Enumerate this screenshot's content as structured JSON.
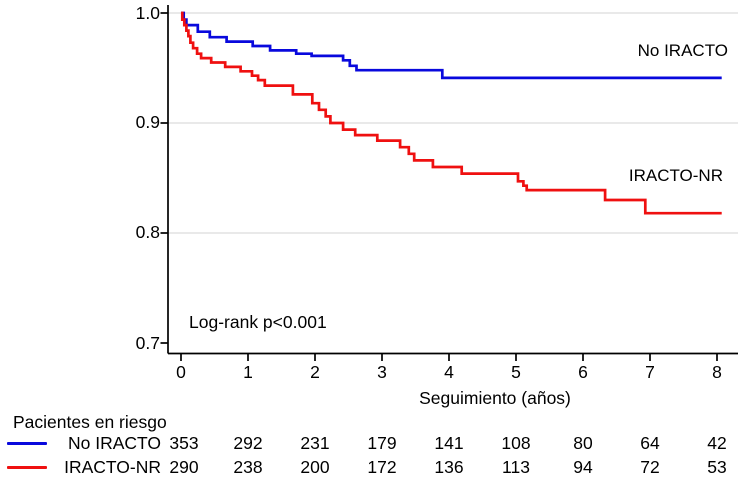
{
  "chart_data": {
    "type": "line",
    "subtype": "kaplan-meier-step-survival",
    "title": "",
    "xlabel": "Seguimiento (años)",
    "ylabel": "",
    "xlim": [
      0,
      8
    ],
    "ylim": [
      0.7,
      1.0
    ],
    "x_ticks": [
      0,
      1,
      2,
      3,
      4,
      5,
      6,
      7,
      8
    ],
    "y_ticks": [
      1.0,
      0.9,
      0.8,
      0.7
    ],
    "y_tick_labels": [
      "1.0",
      "0.9",
      "0.8",
      "0.7"
    ],
    "grid_values": [
      1.0,
      0.9,
      0.8
    ],
    "grid": "horizontal",
    "legend_position": "labels-right-of-curves",
    "annotation": "Log-rank p<0.001",
    "series": [
      {
        "name": "No IRACTO",
        "color": "#0909DD",
        "points": [
          [
            0,
            1.0
          ],
          [
            0.04,
            0.994
          ],
          [
            0.08,
            0.989
          ],
          [
            0.25,
            0.983
          ],
          [
            0.43,
            0.978
          ],
          [
            0.68,
            0.974
          ],
          [
            1.07,
            0.97
          ],
          [
            1.33,
            0.966
          ],
          [
            1.72,
            0.963
          ],
          [
            1.95,
            0.961
          ],
          [
            2.42,
            0.957
          ],
          [
            2.52,
            0.952
          ],
          [
            2.62,
            0.948
          ],
          [
            3.9,
            0.941
          ],
          [
            8.07,
            0.941
          ]
        ]
      },
      {
        "name": "IRACTO-NR",
        "color": "#EF1010",
        "points": [
          [
            0,
            1.0
          ],
          [
            0.02,
            0.994
          ],
          [
            0.05,
            0.989
          ],
          [
            0.08,
            0.984
          ],
          [
            0.11,
            0.979
          ],
          [
            0.14,
            0.973
          ],
          [
            0.18,
            0.968
          ],
          [
            0.24,
            0.963
          ],
          [
            0.3,
            0.959
          ],
          [
            0.45,
            0.955
          ],
          [
            0.66,
            0.951
          ],
          [
            0.89,
            0.947
          ],
          [
            1.06,
            0.943
          ],
          [
            1.15,
            0.939
          ],
          [
            1.25,
            0.934
          ],
          [
            1.67,
            0.926
          ],
          [
            1.96,
            0.918
          ],
          [
            2.06,
            0.912
          ],
          [
            2.16,
            0.906
          ],
          [
            2.23,
            0.9
          ],
          [
            2.42,
            0.894
          ],
          [
            2.6,
            0.889
          ],
          [
            2.93,
            0.884
          ],
          [
            3.27,
            0.878
          ],
          [
            3.4,
            0.872
          ],
          [
            3.48,
            0.866
          ],
          [
            3.76,
            0.86
          ],
          [
            4.19,
            0.854
          ],
          [
            5.03,
            0.847
          ],
          [
            5.11,
            0.843
          ],
          [
            5.16,
            0.839
          ],
          [
            6.33,
            0.83
          ],
          [
            6.93,
            0.818
          ],
          [
            8.07,
            0.818
          ]
        ]
      }
    ]
  },
  "risk_table": {
    "title": "Pacientes en riesgo",
    "columns": [
      0,
      1,
      2,
      3,
      4,
      5,
      6,
      7,
      8
    ],
    "rows": [
      {
        "label": "No IRACTO",
        "color": "#0909DD",
        "counts": [
          353,
          292,
          231,
          179,
          141,
          108,
          80,
          64,
          42
        ]
      },
      {
        "label": "IRACTO-NR",
        "color": "#EF1010",
        "counts": [
          290,
          238,
          200,
          172,
          136,
          113,
          94,
          72,
          53
        ]
      }
    ]
  },
  "colors": {
    "background": "#FFFFFF",
    "axis": "#000000",
    "grid": "#E2E2E2",
    "text": "#000000",
    "series_blue": "#0909DD",
    "series_red": "#EF1010"
  }
}
